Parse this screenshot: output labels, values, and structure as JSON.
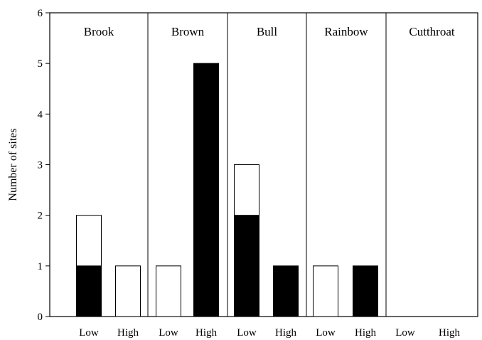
{
  "chart_data": {
    "type": "bar",
    "ylabel": "Number of sites",
    "ylim": [
      0,
      6
    ],
    "yticks": [
      "0",
      "1",
      "2",
      "3",
      "4",
      "5",
      "6"
    ],
    "panels": [
      {
        "label": "Brook",
        "groups": [
          {
            "category": "Low",
            "solid": 1,
            "open": 1
          },
          {
            "category": "High",
            "solid": 0,
            "open": 1
          }
        ]
      },
      {
        "label": "Brown",
        "groups": [
          {
            "category": "Low",
            "solid": 0,
            "open": 1
          },
          {
            "category": "High",
            "solid": 5,
            "open": 0
          }
        ]
      },
      {
        "label": "Bull",
        "groups": [
          {
            "category": "Low",
            "solid": 2,
            "open": 1
          },
          {
            "category": "High",
            "solid": 1,
            "open": 0
          }
        ]
      },
      {
        "label": "Rainbow",
        "groups": [
          {
            "category": "Low",
            "solid": 0,
            "open": 1
          },
          {
            "category": "High",
            "solid": 1,
            "open": 0
          }
        ]
      },
      {
        "label": "Cutthroat",
        "groups": [
          {
            "category": "Low",
            "solid": 0,
            "open": 0
          },
          {
            "category": "High",
            "solid": 0,
            "open": 0
          }
        ]
      }
    ],
    "colors": {
      "solid": "#000000",
      "open": "#ffffff",
      "axis": "#000000"
    }
  }
}
